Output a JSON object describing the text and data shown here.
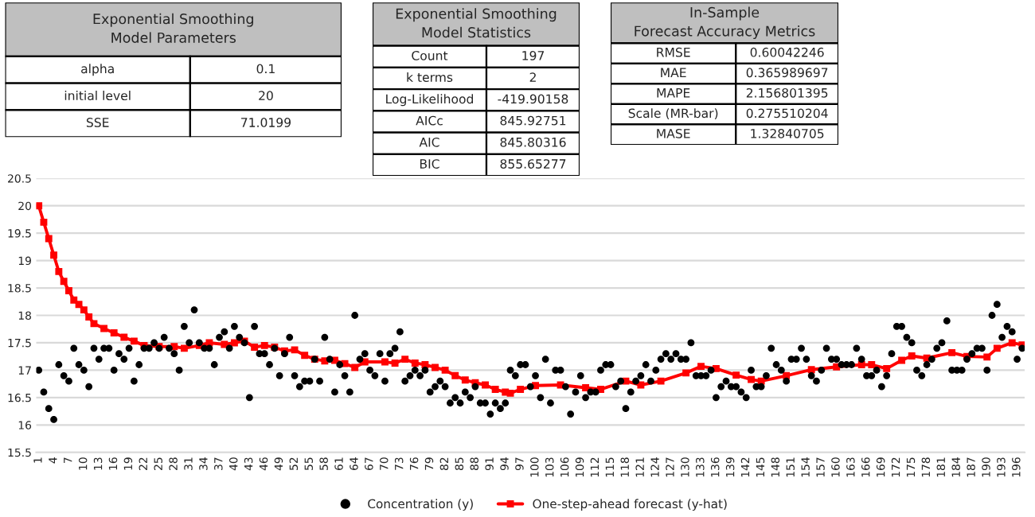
{
  "chart_data": [
    {
      "type": "other",
      "title": "Exponential Smoothing\nModel Parameters",
      "annotations": [
        "alpha",
        "0.1",
        "initial level",
        "20",
        "SSE",
        "71.0199"
      ]
    },
    {
      "type": "other",
      "title": "Exponential Smoothing\nModel Statistics",
      "annotations": [
        "Count",
        "197",
        "k terms",
        "2",
        "Log-Likelihood",
        "-419.90158",
        "AICc",
        "845.92751",
        "AIC",
        "845.80316",
        "BIC",
        "855.65277"
      ]
    },
    {
      "type": "other",
      "title": "In-Sample\nForecast Accuracy Metrics",
      "annotations": [
        "RMSE",
        "0.60042246",
        "MAE",
        "0.365989697",
        "MAPE",
        "2.156801395",
        "Scale (MR-bar)",
        "0.275510204",
        "MASE",
        "1.32840705"
      ]
    },
    {
      "type": "scatter",
      "xlim": [
        0.5,
        197.5
      ],
      "ylim": [
        15.5,
        20.5
      ],
      "yticks": [
        15.5,
        16,
        16.5,
        17,
        17.5,
        18,
        18.5,
        19,
        19.5,
        20,
        20.5
      ],
      "xticks": [
        1,
        4,
        7,
        10,
        13,
        16,
        19,
        22,
        25,
        28,
        31,
        34,
        37,
        40,
        43,
        46,
        49,
        52,
        55,
        58,
        61,
        64,
        67,
        70,
        73,
        76,
        79,
        82,
        85,
        88,
        91,
        94,
        97,
        100,
        103,
        106,
        109,
        112,
        115,
        118,
        121,
        124,
        127,
        130,
        133,
        136,
        139,
        142,
        145,
        148,
        151,
        154,
        157,
        160,
        163,
        166,
        169,
        172,
        175,
        178,
        181,
        184,
        187,
        190,
        193,
        196
      ],
      "grid": "y",
      "legend": "bottom",
      "series": [
        {
          "name": "Concentration (y)",
          "type": "scatter",
          "color": "#000000",
          "marker": "circle",
          "x": [
            1,
            2,
            3,
            4,
            5,
            6,
            7,
            8,
            9,
            10,
            11,
            12,
            13,
            14,
            15,
            16,
            17,
            18,
            19,
            20,
            21,
            22,
            23,
            24,
            25,
            26,
            27,
            28,
            29,
            30,
            31,
            32,
            33,
            34,
            35,
            36,
            37,
            38,
            39,
            40,
            41,
            42,
            43,
            44,
            45,
            46,
            47,
            48,
            49,
            50,
            51,
            52,
            53,
            54,
            55,
            56,
            57,
            58,
            59,
            60,
            61,
            62,
            63,
            64,
            65,
            66,
            67,
            68,
            69,
            70,
            71,
            72,
            73,
            74,
            75,
            76,
            77,
            78,
            79,
            80,
            81,
            82,
            83,
            84,
            85,
            86,
            87,
            88,
            89,
            90,
            91,
            92,
            93,
            94,
            95,
            96,
            97,
            98,
            99,
            100,
            101,
            102,
            103,
            104,
            105,
            106,
            107,
            108,
            109,
            110,
            111,
            112,
            113,
            114,
            115,
            116,
            117,
            118,
            119,
            120,
            121,
            122,
            123,
            124,
            125,
            126,
            127,
            128,
            129,
            130,
            131,
            132,
            133,
            134,
            135,
            136,
            137,
            138,
            139,
            140,
            141,
            142,
            143,
            144,
            145,
            146,
            147,
            148,
            149,
            150,
            151,
            152,
            153,
            154,
            155,
            156,
            157,
            158,
            159,
            160,
            161,
            162,
            163,
            164,
            165,
            166,
            167,
            168,
            169,
            170,
            171,
            172,
            173,
            174,
            175,
            176,
            177,
            178,
            179,
            180,
            181,
            182,
            183,
            184,
            185,
            186,
            187,
            188,
            189,
            190,
            191,
            192,
            193,
            194,
            195,
            196,
            197
          ],
          "values": [
            17.0,
            16.6,
            16.3,
            16.1,
            17.1,
            16.9,
            16.8,
            17.4,
            17.1,
            17.0,
            16.7,
            17.4,
            17.2,
            17.4,
            17.4,
            17.0,
            17.3,
            17.2,
            17.4,
            16.8,
            17.1,
            17.4,
            17.4,
            17.5,
            17.4,
            17.6,
            17.4,
            17.3,
            17.0,
            17.8,
            17.5,
            18.1,
            17.5,
            17.4,
            17.4,
            17.1,
            17.6,
            17.7,
            17.4,
            17.8,
            17.6,
            17.5,
            16.5,
            17.8,
            17.3,
            17.3,
            17.1,
            17.4,
            16.9,
            17.3,
            17.6,
            16.9,
            16.7,
            16.8,
            16.8,
            17.2,
            16.8,
            17.6,
            17.2,
            16.6,
            17.1,
            16.9,
            16.6,
            18.0,
            17.2,
            17.3,
            17.0,
            16.9,
            17.3,
            16.8,
            17.3,
            17.4,
            17.7,
            16.8,
            16.9,
            17.0,
            16.9,
            17.0,
            16.6,
            16.7,
            16.8,
            16.7,
            16.4,
            16.5,
            16.4,
            16.6,
            16.5,
            16.7,
            16.4,
            16.4,
            16.2,
            16.4,
            16.3,
            16.4,
            17.0,
            16.9,
            17.1,
            17.1,
            16.7,
            16.9,
            16.5,
            17.2,
            16.4,
            17.0,
            17.0,
            16.7,
            16.2,
            16.6,
            16.9,
            16.5,
            16.6,
            16.6,
            17.0,
            17.1,
            17.1,
            16.7,
            16.8,
            16.3,
            16.6,
            16.8,
            16.9,
            17.1,
            16.8,
            17.0,
            17.2,
            17.3,
            17.2,
            17.3,
            17.2,
            17.2,
            17.5,
            16.9,
            16.9,
            16.9,
            17.0,
            16.5,
            16.7,
            16.8,
            16.7,
            16.7,
            16.6,
            16.5,
            17.0,
            16.7,
            16.7,
            16.9,
            17.4,
            17.1,
            17.0,
            16.8,
            17.2,
            17.2,
            17.4,
            17.2,
            16.9,
            16.8,
            17.0,
            17.4,
            17.2,
            17.2,
            17.1,
            17.1,
            17.1,
            17.4,
            17.2,
            16.9,
            16.9,
            17.0,
            16.7,
            16.9,
            17.3,
            17.8,
            17.8,
            17.6,
            17.5,
            17.0,
            16.9,
            17.1,
            17.2,
            17.4,
            17.5,
            17.9,
            17.0,
            17.0,
            17.0,
            17.2,
            17.3,
            17.4,
            17.4,
            17.0,
            18.0,
            18.2,
            17.6,
            17.8,
            17.7,
            17.2,
            17.4
          ]
        },
        {
          "name": "One-step-ahead forecast (y-hat)",
          "type": "line",
          "color": "#ff0000",
          "marker": "square",
          "line_style": "solid",
          "x": [
            1,
            2,
            3,
            4,
            5,
            6,
            7,
            8,
            9,
            10,
            11,
            12,
            14,
            16,
            18,
            20,
            22,
            25,
            28,
            30,
            33,
            35,
            38,
            40,
            42,
            44,
            46,
            48,
            50,
            52,
            54,
            56,
            58,
            60,
            62,
            64,
            66,
            70,
            72,
            74,
            76,
            78,
            80,
            82,
            84,
            86,
            88,
            90,
            92,
            94,
            95,
            97,
            100,
            105,
            110,
            113,
            118,
            121,
            125,
            130,
            133,
            136,
            140,
            143,
            145,
            150,
            155,
            160,
            165,
            167,
            170,
            173,
            175,
            178,
            183,
            186,
            190,
            192,
            195,
            197
          ],
          "values": [
            20,
            19.7,
            19.4,
            19.1,
            18.8,
            18.62,
            18.45,
            18.28,
            18.2,
            18.1,
            17.97,
            17.85,
            17.76,
            17.68,
            17.6,
            17.53,
            17.45,
            17.43,
            17.43,
            17.4,
            17.45,
            17.5,
            17.47,
            17.5,
            17.53,
            17.42,
            17.45,
            17.42,
            17.35,
            17.37,
            17.27,
            17.2,
            17.17,
            17.18,
            17.12,
            17.05,
            17.15,
            17.15,
            17.13,
            17.2,
            17.13,
            17.1,
            17.05,
            17.0,
            16.9,
            16.82,
            16.77,
            16.73,
            16.65,
            16.6,
            16.58,
            16.65,
            16.72,
            16.73,
            16.68,
            16.65,
            16.8,
            16.73,
            16.8,
            16.95,
            17.07,
            17.03,
            16.91,
            16.83,
            16.8,
            16.9,
            17.01,
            17.06,
            17.1,
            17.1,
            17.03,
            17.18,
            17.26,
            17.22,
            17.32,
            17.25,
            17.24,
            17.4,
            17.5,
            17.46
          ]
        }
      ]
    }
  ]
}
